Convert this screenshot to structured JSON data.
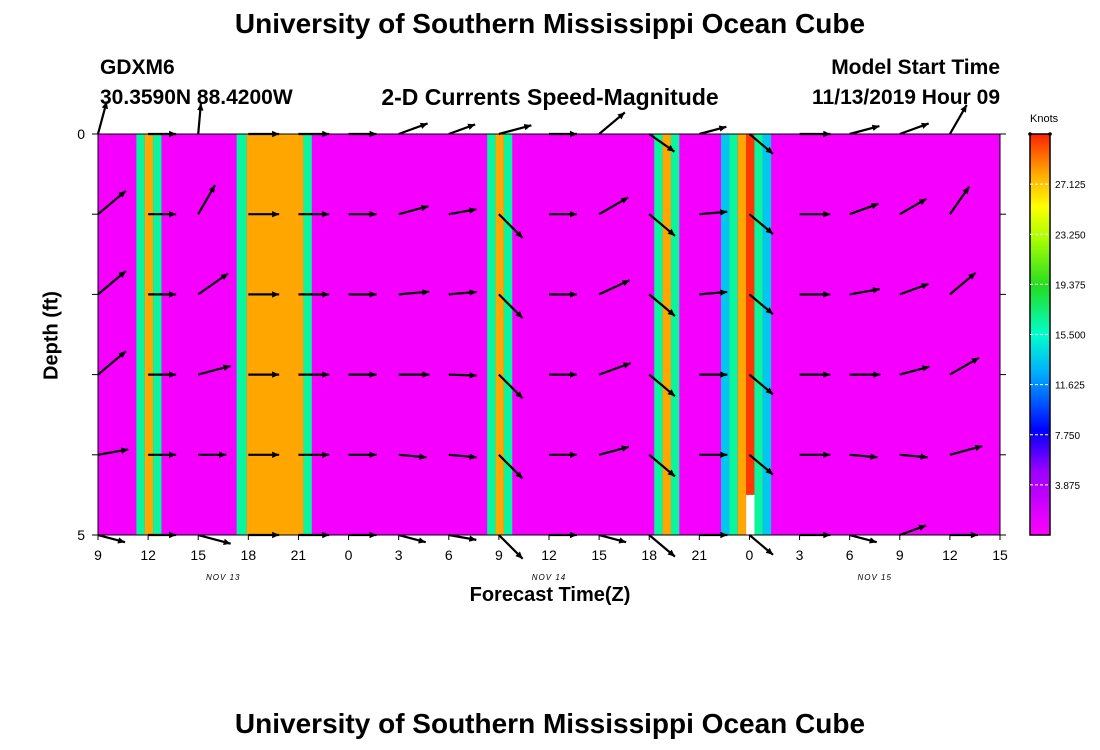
{
  "page": {
    "title_top": "University of Southern Mississippi Ocean Cube",
    "title_bottom": "University of Southern Mississippi Ocean Cube",
    "station": "GDXM6",
    "location": "30.3590N 88.4200W",
    "subtitle": "2-D Currents Speed-Magnitude",
    "model_label": "Model Start Time",
    "model_time": "11/13/2019 Hour 09"
  },
  "chart_data": {
    "type": "heatmap",
    "title": "2-D Currents Speed-Magnitude",
    "xlabel": "Forecast Time(Z)",
    "ylabel": "Depth (ft)",
    "xlim": [
      0,
      54
    ],
    "ylim": [
      0,
      5
    ],
    "x_ticks": [
      {
        "x": 0,
        "label": "9"
      },
      {
        "x": 3,
        "label": "12"
      },
      {
        "x": 6,
        "label": "15"
      },
      {
        "x": 9,
        "label": "18"
      },
      {
        "x": 12,
        "label": "21"
      },
      {
        "x": 15,
        "label": "0"
      },
      {
        "x": 18,
        "label": "3"
      },
      {
        "x": 21,
        "label": "6"
      },
      {
        "x": 24,
        "label": "9"
      },
      {
        "x": 27,
        "label": "12"
      },
      {
        "x": 30,
        "label": "15"
      },
      {
        "x": 33,
        "label": "18"
      },
      {
        "x": 36,
        "label": "21"
      },
      {
        "x": 39,
        "label": "0"
      },
      {
        "x": 42,
        "label": "3"
      },
      {
        "x": 45,
        "label": "6"
      },
      {
        "x": 48,
        "label": "9"
      },
      {
        "x": 51,
        "label": "12"
      },
      {
        "x": 54,
        "label": "15"
      }
    ],
    "date_labels": [
      {
        "x": 7.5,
        "label": "NOV 13"
      },
      {
        "x": 27,
        "label": "NOV 14"
      },
      {
        "x": 46.5,
        "label": "NOV 15"
      }
    ],
    "y_ticks": [
      {
        "y": 0,
        "label": "0"
      },
      {
        "y": 5,
        "label": "5"
      }
    ],
    "depth_levels": [
      0,
      1,
      2,
      3,
      4,
      5
    ],
    "colorbar": {
      "unit": "Knots",
      "min": 0,
      "max": 31,
      "ticks": [
        3.875,
        7.75,
        11.625,
        15.5,
        19.375,
        23.25,
        27.125
      ],
      "tick_labels": [
        "3.875",
        "7.750",
        "11.625",
        "15.500",
        "19.375",
        "23.250",
        "27.125"
      ]
    },
    "background_value": 0.5,
    "bands": [
      {
        "x0": 2.3,
        "x1": 2.8,
        "v": 16.5
      },
      {
        "x0": 2.8,
        "x1": 3.3,
        "v": 28
      },
      {
        "x0": 3.3,
        "x1": 3.8,
        "v": 16.5
      },
      {
        "x0": 8.3,
        "x1": 8.9,
        "v": 16.5
      },
      {
        "x0": 8.9,
        "x1": 12.3,
        "v": 28
      },
      {
        "x0": 12.3,
        "x1": 12.8,
        "v": 16.5
      },
      {
        "x0": 23.3,
        "x1": 23.8,
        "v": 16.5
      },
      {
        "x0": 23.8,
        "x1": 24.3,
        "v": 28
      },
      {
        "x0": 24.3,
        "x1": 24.8,
        "v": 16.5
      },
      {
        "x0": 33.3,
        "x1": 33.8,
        "v": 16.5
      },
      {
        "x0": 33.8,
        "x1": 34.3,
        "v": 28
      },
      {
        "x0": 34.3,
        "x1": 34.8,
        "v": 16.5
      },
      {
        "x0": 37.3,
        "x1": 37.8,
        "v": 13.5
      },
      {
        "x0": 37.8,
        "x1": 38.3,
        "v": 16.5
      },
      {
        "x0": 38.3,
        "x1": 38.8,
        "v": 28
      },
      {
        "x0": 38.8,
        "x1": 39.3,
        "v": 30.5
      },
      {
        "x0": 39.3,
        "x1": 39.8,
        "v": 16.5
      },
      {
        "x0": 39.8,
        "x1": 40.3,
        "v": 13.5
      }
    ],
    "blank_region": {
      "x0": 38.8,
      "x1": 39.3,
      "y0": 4.5,
      "y1": 5
    },
    "vector_times": [
      0,
      3,
      6,
      9,
      12,
      15,
      18,
      21,
      24,
      27,
      30,
      33,
      36,
      39,
      42,
      45,
      48,
      51
    ],
    "vectors": [
      [
        [
          1.2,
          -285
        ],
        [
          1.3,
          -320
        ],
        [
          1.3,
          -320
        ],
        [
          1.3,
          -320
        ],
        [
          1.1,
          -350
        ],
        [
          1.0,
          -15
        ]
      ],
      [
        [
          1.0,
          0
        ],
        [
          1.0,
          0
        ],
        [
          1.0,
          0
        ],
        [
          1.0,
          0
        ],
        [
          1.0,
          0
        ],
        [
          1.0,
          0
        ]
      ],
      [
        [
          1.1,
          -275
        ],
        [
          1.2,
          -300
        ],
        [
          1.3,
          -325
        ],
        [
          1.2,
          -345
        ],
        [
          1.0,
          0
        ],
        [
          1.2,
          -15
        ]
      ],
      [
        [
          1.1,
          0
        ],
        [
          1.1,
          0
        ],
        [
          1.1,
          0
        ],
        [
          1.1,
          0
        ],
        [
          1.1,
          0
        ],
        [
          1.1,
          0
        ]
      ],
      [
        [
          1.1,
          0
        ],
        [
          1.1,
          0
        ],
        [
          1.1,
          0
        ],
        [
          1.1,
          0
        ],
        [
          1.1,
          0
        ],
        [
          1.1,
          0
        ]
      ],
      [
        [
          1.0,
          0
        ],
        [
          1.0,
          0
        ],
        [
          1.0,
          0
        ],
        [
          1.0,
          0
        ],
        [
          1.0,
          0
        ],
        [
          1.0,
          0
        ]
      ],
      [
        [
          1.1,
          -340
        ],
        [
          1.1,
          -345
        ],
        [
          1.1,
          -355
        ],
        [
          1.1,
          0
        ],
        [
          1.0,
          -5
        ],
        [
          1.0,
          -15
        ]
      ],
      [
        [
          1.0,
          -340
        ],
        [
          1.0,
          -350
        ],
        [
          1.0,
          -355
        ],
        [
          1.0,
          -2
        ],
        [
          1.0,
          -5
        ],
        [
          1.0,
          -10
        ]
      ],
      [
        [
          1.2,
          -345
        ],
        [
          1.2,
          -45
        ],
        [
          1.2,
          -45
        ],
        [
          1.2,
          -45
        ],
        [
          1.2,
          -45
        ],
        [
          1.2,
          -45
        ]
      ],
      [
        [
          1.0,
          0
        ],
        [
          1.0,
          0
        ],
        [
          1.0,
          0
        ],
        [
          1.0,
          0
        ],
        [
          1.0,
          0
        ],
        [
          1.0,
          0
        ]
      ],
      [
        [
          1.2,
          -320
        ],
        [
          1.2,
          -330
        ],
        [
          1.2,
          -335
        ],
        [
          1.2,
          -340
        ],
        [
          1.1,
          -345
        ],
        [
          1.0,
          -15
        ]
      ],
      [
        [
          1.1,
          -35
        ],
        [
          1.2,
          -40
        ],
        [
          1.2,
          -40
        ],
        [
          1.2,
          -40
        ],
        [
          1.2,
          -40
        ],
        [
          1.2,
          -40
        ]
      ],
      [
        [
          1.0,
          -345
        ],
        [
          1.0,
          -355
        ],
        [
          1.0,
          -355
        ],
        [
          1.0,
          0
        ],
        [
          1.0,
          0
        ],
        [
          1.0,
          0
        ]
      ],
      [
        [
          1.1,
          -40
        ],
        [
          1.1,
          -40
        ],
        [
          1.1,
          -40
        ],
        [
          1.1,
          -40
        ],
        [
          1.1,
          -40
        ],
        [
          1.1,
          -40
        ]
      ],
      [
        [
          1.1,
          0
        ],
        [
          1.1,
          0
        ],
        [
          1.1,
          0
        ],
        [
          1.1,
          0
        ],
        [
          1.1,
          0
        ],
        [
          1.1,
          0
        ]
      ],
      [
        [
          1.1,
          -345
        ],
        [
          1.1,
          -340
        ],
        [
          1.1,
          -350
        ],
        [
          1.1,
          0
        ],
        [
          1.0,
          -5
        ],
        [
          1.0,
          -15
        ]
      ],
      [
        [
          1.1,
          -340
        ],
        [
          1.1,
          -330
        ],
        [
          1.1,
          -340
        ],
        [
          1.1,
          -345
        ],
        [
          1.0,
          -5
        ],
        [
          1.0,
          -340
        ]
      ],
      [
        [
          1.2,
          -300
        ],
        [
          1.2,
          -305
        ],
        [
          1.2,
          -320
        ],
        [
          1.2,
          -330
        ],
        [
          1.2,
          -345
        ],
        [
          1.0,
          0
        ]
      ]
    ]
  }
}
